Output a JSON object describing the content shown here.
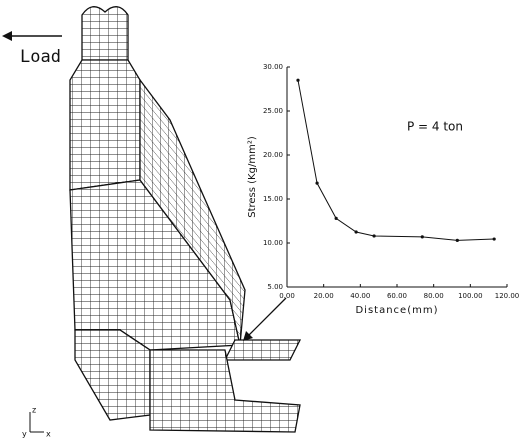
{
  "chart_data": {
    "type": "line",
    "load_label": "Load",
    "annotation": "P = 4 ton",
    "y_label": "Stress (Kg/mm²)",
    "x_label": "Distance(mm)",
    "triad": [
      "y",
      "z",
      "x"
    ],
    "x": [
      6,
      16.4,
      26.8,
      37.7,
      47.5,
      73.8,
      92.9,
      113
    ],
    "values": [
      28.5,
      16.8,
      12.8,
      11.25,
      10.8,
      10.7,
      10.3,
      10.45
    ],
    "color": "#111111",
    "xlim": [
      0,
      120
    ],
    "ylim": [
      5,
      30
    ],
    "xticks": [
      {
        "value": 0,
        "label": "0.00"
      },
      {
        "value": 20,
        "label": "20.00"
      },
      {
        "value": 40,
        "label": "40.00"
      },
      {
        "value": 60,
        "label": "60.00"
      },
      {
        "value": 80,
        "label": "80.00"
      },
      {
        "value": 100,
        "label": "100.00"
      },
      {
        "value": 120,
        "label": "120.00"
      }
    ],
    "yticks": [
      {
        "value": 5,
        "label": "5.00"
      },
      {
        "value": 10,
        "label": "10.00"
      },
      {
        "value": 15,
        "label": "15.00"
      },
      {
        "value": 20,
        "label": "20.00"
      },
      {
        "value": 25,
        "label": "25.00"
      },
      {
        "value": 30,
        "label": "30.00"
      }
    ]
  }
}
